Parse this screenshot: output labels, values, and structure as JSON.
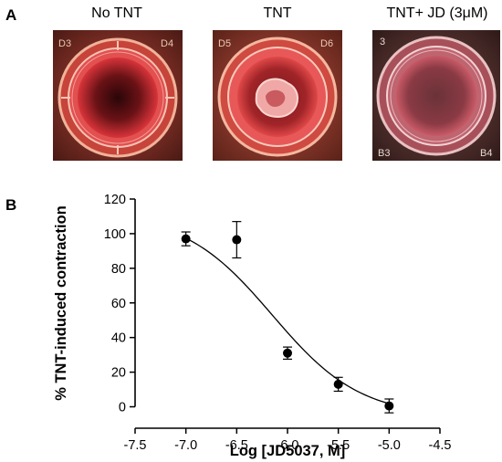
{
  "panel_a": {
    "letter": "A",
    "photos": [
      {
        "title": "No TNT",
        "labels": [
          "D3",
          "D4"
        ],
        "state": "no-tissue-mass"
      },
      {
        "title": "TNT",
        "labels": [
          "D5",
          "D6"
        ],
        "state": "contracted-tissue"
      },
      {
        "title": "TNT+ JD (3μM)",
        "labels": [
          "3",
          "B3",
          "B4"
        ],
        "state": "no-tissue-mass"
      }
    ]
  },
  "panel_b": {
    "letter": "B"
  },
  "chart_data": {
    "type": "scatter",
    "xlabel": "Log [JD5037, M]",
    "ylabel": "% TNT-induced contraction",
    "xlim": [
      -7.5,
      -4.5
    ],
    "ylim": [
      -5,
      120
    ],
    "xticks": [
      "-7.5",
      "-7.0",
      "-6.5",
      "-6.0",
      "-5.5",
      "-5.0",
      "-4.5"
    ],
    "xtick_values": [
      -7.5,
      -7.0,
      -6.5,
      -6.0,
      -5.5,
      -5.0,
      -4.5
    ],
    "yticks": [
      "0",
      "20",
      "40",
      "60",
      "80",
      "100",
      "120"
    ],
    "ytick_values": [
      0,
      20,
      40,
      60,
      80,
      100,
      120
    ],
    "points": [
      {
        "x": -7.0,
        "y": 97,
        "err": 4
      },
      {
        "x": -6.5,
        "y": 96.5,
        "err": 10.5
      },
      {
        "x": -6.0,
        "y": 31,
        "err": 3.5
      },
      {
        "x": -5.5,
        "y": 13,
        "err": 4
      },
      {
        "x": -5.0,
        "y": 0.5,
        "err": 4
      }
    ],
    "fit_curve": {
      "model": "sigmoidal-dose-response",
      "x_range": [
        -7.0,
        -5.0
      ],
      "top": 112,
      "bottom": -6,
      "log_ic50": -6.15,
      "hill": -1.0
    },
    "colors": {
      "points": "#000000",
      "axis": "#000000",
      "curve": "#000000"
    }
  }
}
